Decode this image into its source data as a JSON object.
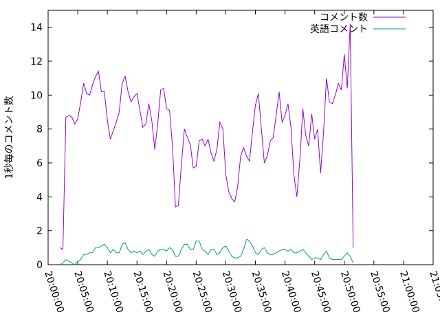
{
  "chart_data": {
    "type": "line",
    "ylabel": "1秒毎のコメント数",
    "xlabel": "",
    "ylim": [
      0,
      15
    ],
    "y_ticks": [
      0,
      2,
      4,
      6,
      8,
      10,
      12,
      14
    ],
    "xlim": [
      "20:00:00",
      "21:05:00"
    ],
    "x_ticks": [
      "20:00:00",
      "20:05:00",
      "20:10:00",
      "20:15:00",
      "20:20:00",
      "20:25:00",
      "20:30:00",
      "20:35:00",
      "20:40:00",
      "20:45:00",
      "20:50:00",
      "20:55:00",
      "21:00:00",
      "21:05:00"
    ],
    "grid": false,
    "legend_position": "top-right",
    "series": [
      {
        "name": "コメント数",
        "color": "#9400d3",
        "points": [
          [
            "20:02:00",
            1.0
          ],
          [
            "20:02:30",
            0.9
          ],
          [
            "20:03:00",
            8.7
          ],
          [
            "20:03:30",
            8.8
          ],
          [
            "20:04:00",
            8.7
          ],
          [
            "20:04:30",
            8.3
          ],
          [
            "20:05:00",
            8.6
          ],
          [
            "20:05:30",
            9.6
          ],
          [
            "20:06:00",
            10.7
          ],
          [
            "20:06:30",
            10.1
          ],
          [
            "20:07:00",
            10.0
          ],
          [
            "20:07:30",
            10.6
          ],
          [
            "20:08:00",
            11.1
          ],
          [
            "20:08:30",
            11.4
          ],
          [
            "20:09:00",
            10.2
          ],
          [
            "20:09:30",
            10.2
          ],
          [
            "20:10:00",
            8.5
          ],
          [
            "20:10:30",
            7.4
          ],
          [
            "20:11:00",
            7.9
          ],
          [
            "20:11:30",
            8.4
          ],
          [
            "20:12:00",
            9.0
          ],
          [
            "20:12:30",
            10.7
          ],
          [
            "20:13:00",
            11.1
          ],
          [
            "20:13:30",
            10.2
          ],
          [
            "20:14:00",
            9.6
          ],
          [
            "20:14:30",
            9.9
          ],
          [
            "20:15:00",
            10.1
          ],
          [
            "20:15:30",
            9.1
          ],
          [
            "20:16:00",
            8.1
          ],
          [
            "20:16:30",
            8.3
          ],
          [
            "20:17:00",
            9.5
          ],
          [
            "20:17:30",
            8.5
          ],
          [
            "20:18:00",
            6.8
          ],
          [
            "20:18:30",
            8.3
          ],
          [
            "20:19:00",
            10.3
          ],
          [
            "20:19:30",
            10.4
          ],
          [
            "20:20:00",
            9.2
          ],
          [
            "20:20:30",
            9.1
          ],
          [
            "20:21:00",
            7.0
          ],
          [
            "20:21:30",
            3.4
          ],
          [
            "20:22:00",
            3.5
          ],
          [
            "20:22:30",
            5.9
          ],
          [
            "20:23:00",
            8.0
          ],
          [
            "20:23:30",
            7.5
          ],
          [
            "20:24:00",
            7.1
          ],
          [
            "20:24:30",
            5.7
          ],
          [
            "20:25:00",
            5.8
          ],
          [
            "20:25:30",
            7.3
          ],
          [
            "20:26:00",
            7.4
          ],
          [
            "20:26:30",
            7.0
          ],
          [
            "20:27:00",
            7.4
          ],
          [
            "20:27:30",
            6.6
          ],
          [
            "20:28:00",
            6.1
          ],
          [
            "20:28:30",
            6.8
          ],
          [
            "20:29:00",
            8.4
          ],
          [
            "20:29:30",
            8.0
          ],
          [
            "20:30:00",
            5.3
          ],
          [
            "20:30:30",
            4.3
          ],
          [
            "20:31:00",
            3.9
          ],
          [
            "20:31:30",
            3.7
          ],
          [
            "20:32:00",
            4.6
          ],
          [
            "20:32:30",
            6.4
          ],
          [
            "20:33:00",
            6.9
          ],
          [
            "20:33:30",
            6.4
          ],
          [
            "20:34:00",
            6.1
          ],
          [
            "20:34:30",
            7.8
          ],
          [
            "20:35:00",
            9.4
          ],
          [
            "20:35:30",
            10.1
          ],
          [
            "20:36:00",
            8.0
          ],
          [
            "20:36:30",
            6.0
          ],
          [
            "20:37:00",
            6.4
          ],
          [
            "20:37:30",
            7.3
          ],
          [
            "20:38:00",
            7.5
          ],
          [
            "20:38:30",
            8.8
          ],
          [
            "20:39:00",
            10.2
          ],
          [
            "20:39:30",
            8.4
          ],
          [
            "20:40:00",
            8.8
          ],
          [
            "20:40:30",
            9.5
          ],
          [
            "20:41:00",
            8.1
          ],
          [
            "20:41:30",
            5.3
          ],
          [
            "20:42:00",
            4.0
          ],
          [
            "20:42:30",
            6.2
          ],
          [
            "20:43:00",
            9.2
          ],
          [
            "20:43:30",
            7.6
          ],
          [
            "20:44:00",
            7.0
          ],
          [
            "20:44:30",
            8.9
          ],
          [
            "20:45:00",
            7.4
          ],
          [
            "20:45:30",
            8.0
          ],
          [
            "20:46:00",
            5.4
          ],
          [
            "20:46:30",
            7.8
          ],
          [
            "20:47:00",
            11.0
          ],
          [
            "20:47:30",
            9.6
          ],
          [
            "20:48:00",
            9.5
          ],
          [
            "20:48:30",
            10.0
          ],
          [
            "20:49:00",
            10.7
          ],
          [
            "20:49:30",
            10.3
          ],
          [
            "20:50:00",
            12.4
          ],
          [
            "20:50:30",
            10.4
          ],
          [
            "20:51:00",
            14.2
          ],
          [
            "20:51:30",
            1.0
          ]
        ]
      },
      {
        "name": "英語コメント",
        "color": "#009e73",
        "points": [
          [
            "20:02:00",
            0.0
          ],
          [
            "20:02:30",
            0.1
          ],
          [
            "20:03:00",
            0.3
          ],
          [
            "20:03:30",
            0.2
          ],
          [
            "20:04:00",
            0.1
          ],
          [
            "20:04:30",
            0.0
          ],
          [
            "20:05:00",
            0.2
          ],
          [
            "20:05:30",
            0.3
          ],
          [
            "20:06:00",
            0.6
          ],
          [
            "20:06:30",
            0.6
          ],
          [
            "20:07:00",
            0.7
          ],
          [
            "20:07:30",
            0.7
          ],
          [
            "20:08:00",
            1.0
          ],
          [
            "20:08:30",
            1.0
          ],
          [
            "20:09:00",
            1.1
          ],
          [
            "20:09:30",
            1.2
          ],
          [
            "20:10:00",
            1.0
          ],
          [
            "20:10:30",
            0.7
          ],
          [
            "20:11:00",
            0.9
          ],
          [
            "20:11:30",
            0.7
          ],
          [
            "20:12:00",
            0.7
          ],
          [
            "20:12:30",
            1.2
          ],
          [
            "20:13:00",
            1.3
          ],
          [
            "20:13:30",
            0.9
          ],
          [
            "20:14:00",
            0.7
          ],
          [
            "20:14:30",
            0.8
          ],
          [
            "20:15:00",
            0.7
          ],
          [
            "20:15:30",
            0.8
          ],
          [
            "20:16:00",
            0.6
          ],
          [
            "20:16:30",
            0.8
          ],
          [
            "20:17:00",
            0.9
          ],
          [
            "20:17:30",
            0.6
          ],
          [
            "20:18:00",
            0.5
          ],
          [
            "20:18:30",
            0.8
          ],
          [
            "20:19:00",
            0.9
          ],
          [
            "20:19:30",
            0.9
          ],
          [
            "20:20:00",
            0.8
          ],
          [
            "20:20:30",
            1.0
          ],
          [
            "20:21:00",
            0.9
          ],
          [
            "20:21:30",
            0.5
          ],
          [
            "20:22:00",
            0.5
          ],
          [
            "20:22:30",
            0.9
          ],
          [
            "20:23:00",
            1.2
          ],
          [
            "20:23:30",
            1.2
          ],
          [
            "20:24:00",
            0.9
          ],
          [
            "20:24:30",
            0.9
          ],
          [
            "20:25:00",
            1.4
          ],
          [
            "20:25:30",
            1.4
          ],
          [
            "20:26:00",
            0.9
          ],
          [
            "20:26:30",
            0.8
          ],
          [
            "20:27:00",
            0.6
          ],
          [
            "20:27:30",
            0.9
          ],
          [
            "20:28:00",
            0.9
          ],
          [
            "20:28:30",
            0.6
          ],
          [
            "20:29:00",
            0.7
          ],
          [
            "20:29:30",
            1.0
          ],
          [
            "20:30:00",
            1.1
          ],
          [
            "20:30:30",
            0.8
          ],
          [
            "20:31:00",
            0.5
          ],
          [
            "20:31:30",
            0.4
          ],
          [
            "20:32:00",
            0.4
          ],
          [
            "20:32:30",
            0.5
          ],
          [
            "20:33:00",
            0.9
          ],
          [
            "20:33:30",
            1.5
          ],
          [
            "20:34:00",
            1.4
          ],
          [
            "20:34:30",
            1.1
          ],
          [
            "20:35:00",
            0.7
          ],
          [
            "20:35:30",
            0.6
          ],
          [
            "20:36:00",
            0.9
          ],
          [
            "20:36:30",
            1.0
          ],
          [
            "20:37:00",
            0.7
          ],
          [
            "20:37:30",
            0.6
          ],
          [
            "20:38:00",
            0.6
          ],
          [
            "20:38:30",
            0.7
          ],
          [
            "20:39:00",
            0.8
          ],
          [
            "20:39:30",
            0.9
          ],
          [
            "20:40:00",
            0.9
          ],
          [
            "20:40:30",
            0.8
          ],
          [
            "20:41:00",
            0.9
          ],
          [
            "20:41:30",
            0.7
          ],
          [
            "20:42:00",
            0.7
          ],
          [
            "20:42:30",
            0.8
          ],
          [
            "20:43:00",
            0.9
          ],
          [
            "20:43:30",
            0.7
          ],
          [
            "20:44:00",
            0.5
          ],
          [
            "20:44:30",
            0.3
          ],
          [
            "20:45:00",
            0.4
          ],
          [
            "20:45:30",
            0.4
          ],
          [
            "20:46:00",
            0.3
          ],
          [
            "20:46:30",
            0.6
          ],
          [
            "20:47:00",
            0.8
          ],
          [
            "20:47:30",
            0.4
          ],
          [
            "20:48:00",
            0.3
          ],
          [
            "20:48:30",
            0.3
          ],
          [
            "20:49:00",
            0.3
          ],
          [
            "20:49:30",
            0.3
          ],
          [
            "20:50:00",
            0.5
          ],
          [
            "20:50:30",
            0.7
          ],
          [
            "20:51:00",
            0.5
          ],
          [
            "20:51:30",
            0.1
          ]
        ]
      }
    ]
  }
}
